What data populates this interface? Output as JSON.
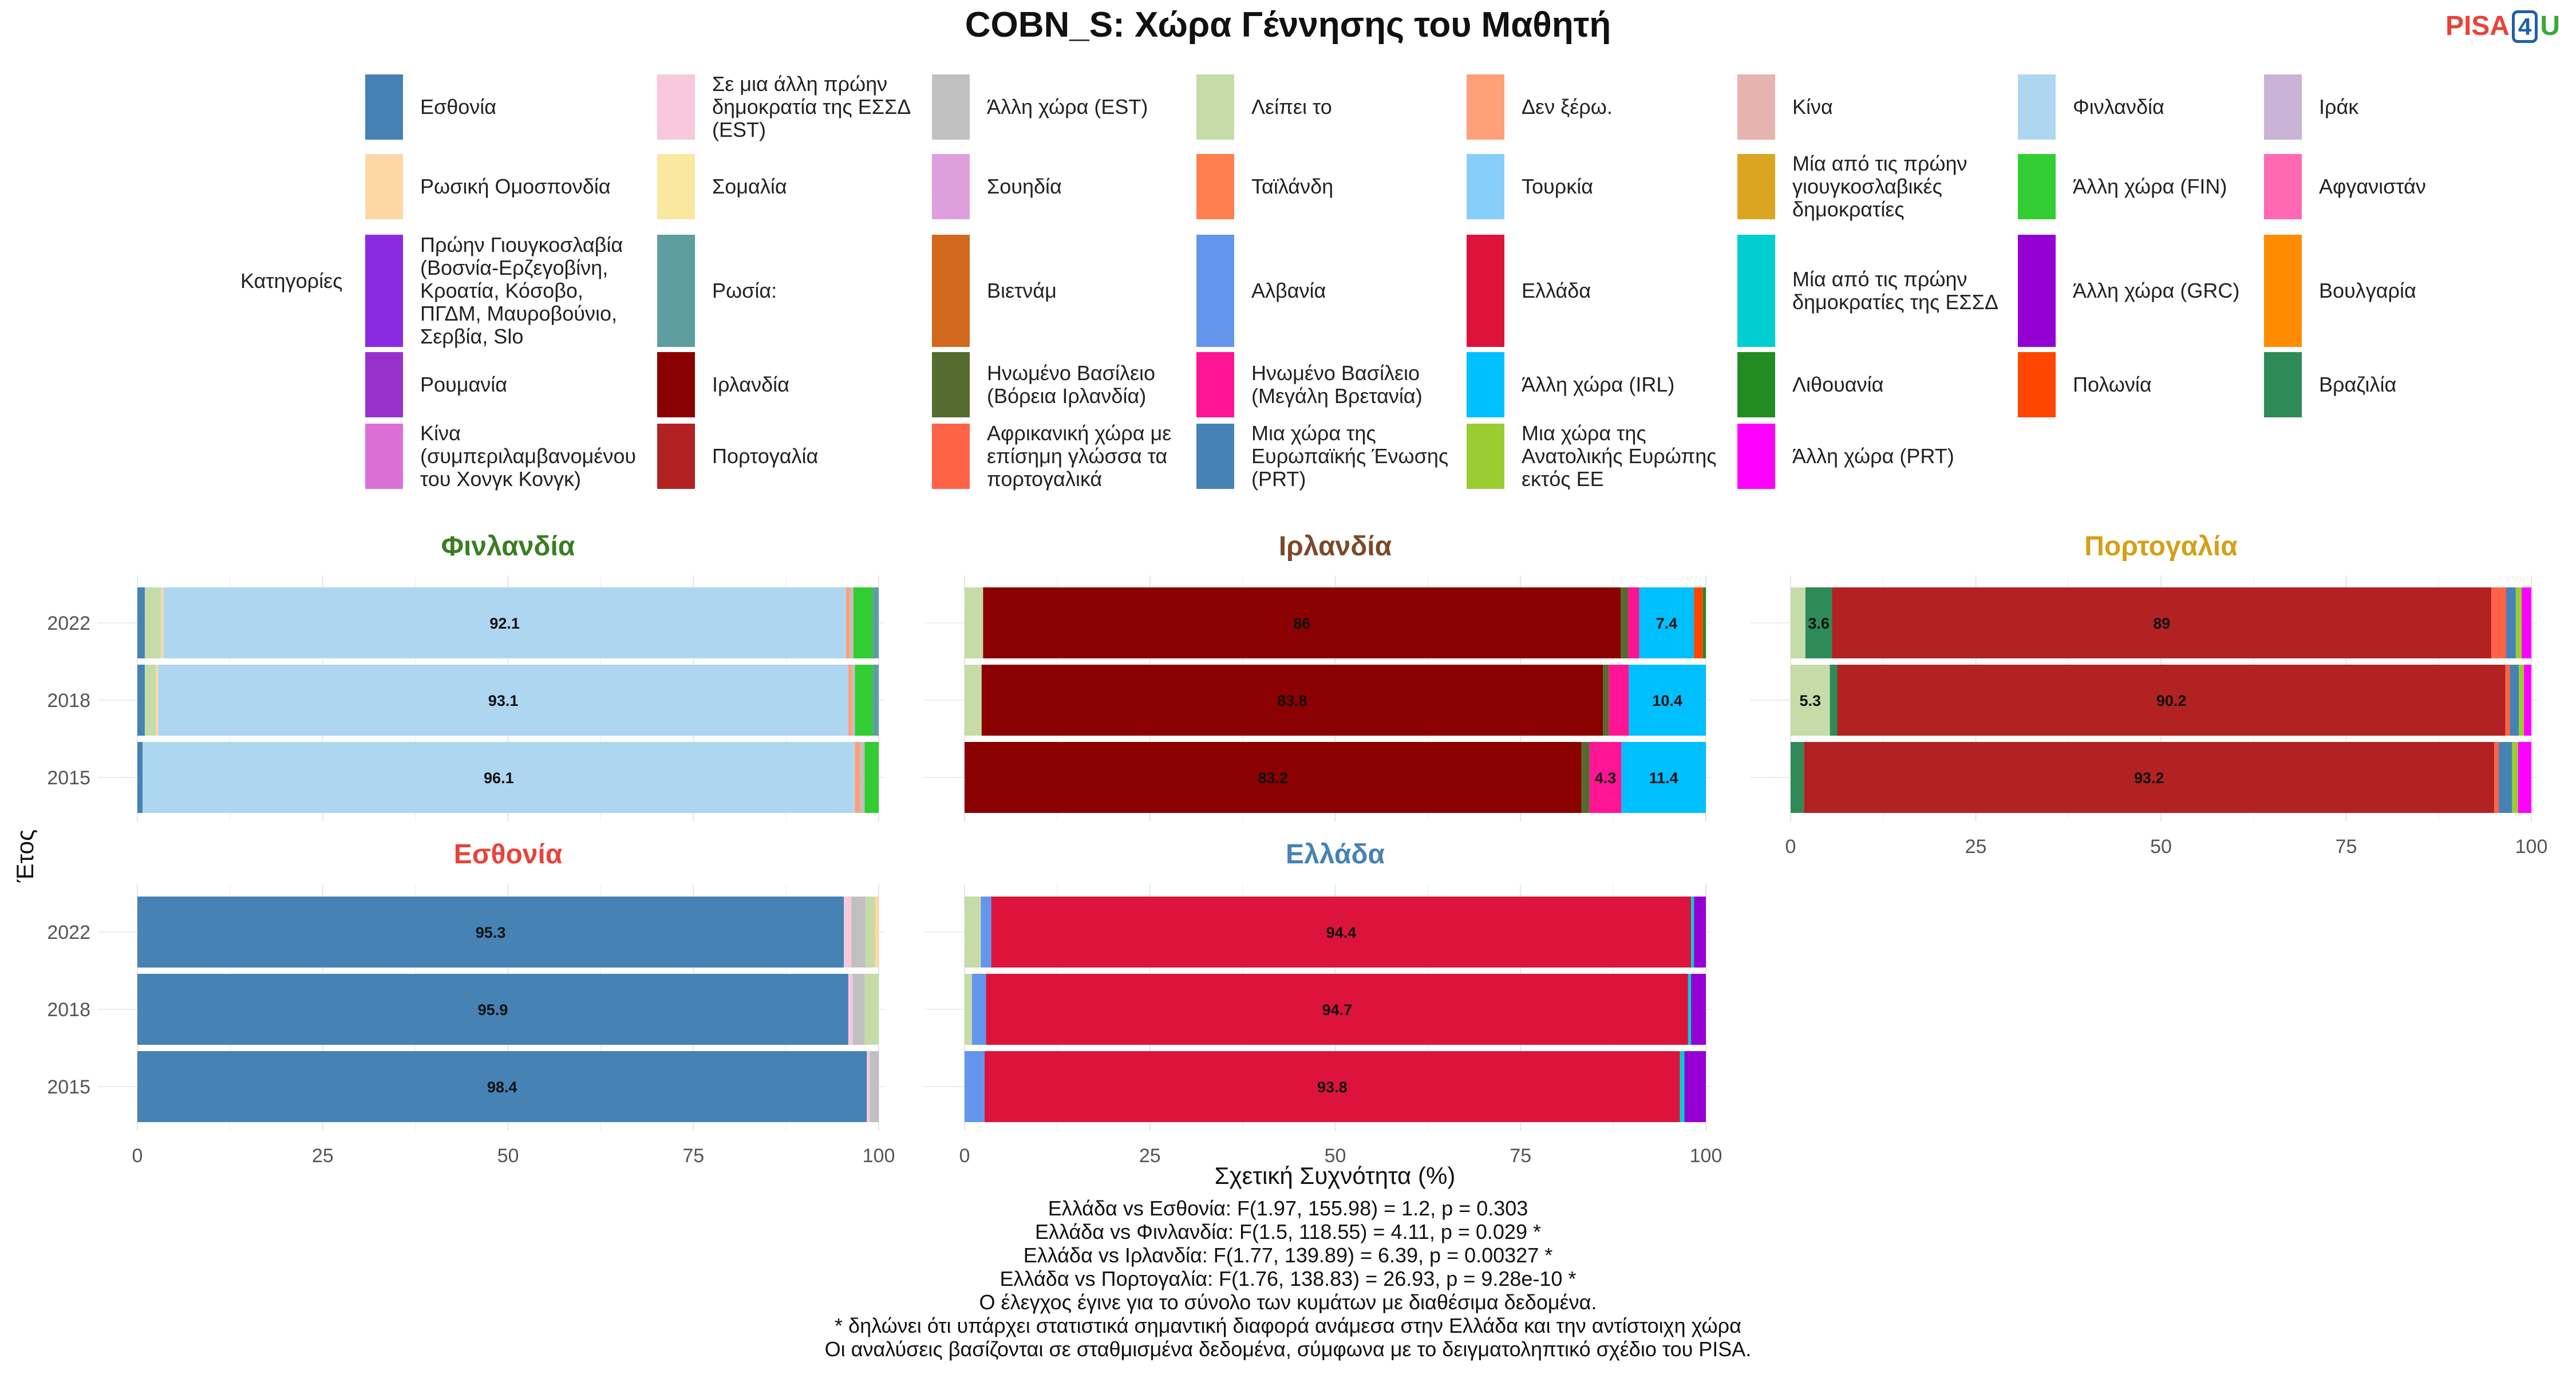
{
  "title": "COBN_S: Χώρα Γέννησης του Μαθητή",
  "logo": {
    "p": "PISA",
    "four": "4",
    "u": "U"
  },
  "legend": {
    "title": "Κατηγορίες",
    "items": [
      {
        "label": "Εσθονία",
        "color": "#4682B4"
      },
      {
        "label": "Σε μια άλλη πρώην δημοκρατία της ΕΣΣΔ (EST)",
        "color": "#F8C8DC"
      },
      {
        "label": "Άλλη χώρα (EST)",
        "color": "#C0C0C0"
      },
      {
        "label": "Λείπει το",
        "color": "#C5DCA8"
      },
      {
        "label": "Δεν ξέρω.",
        "color": "#FFA07A"
      },
      {
        "label": "Κίνα",
        "color": "#E6B3AE"
      },
      {
        "label": "Φινλανδία",
        "color": "#AED6F1"
      },
      {
        "label": "Ιράκ",
        "color": "#C9B3D6"
      },
      {
        "label": "Ρωσική Ομοσπονδία",
        "color": "#FDD8A5"
      },
      {
        "label": "Σομαλία",
        "color": "#FAE7A0"
      },
      {
        "label": "Σουηδία",
        "color": "#DDA0DD"
      },
      {
        "label": "Ταϊλάνδη",
        "color": "#FF7F50"
      },
      {
        "label": "Τουρκία",
        "color": "#87CEFA"
      },
      {
        "label": "Μία από τις πρώην γιουγκοσλαβικές δημοκρατίες",
        "color": "#DAA520"
      },
      {
        "label": "Άλλη χώρα (FIN)",
        "color": "#32CD32"
      },
      {
        "label": "Αφγανιστάν",
        "color": "#FF69B4"
      },
      {
        "label": "Πρώην Γιουγκοσλαβία (Βοσνία-Ερζεγοβίνη, Κροατία, Κόσοβο, ΠΓΔΜ, Μαυροβούνιο, Σερβία, Slo",
        "color": "#8A2BE2"
      },
      {
        "label": "Ρωσία:",
        "color": "#5F9EA0"
      },
      {
        "label": "Βιετνάμ",
        "color": "#D2691E"
      },
      {
        "label": "Αλβανία",
        "color": "#6495ED"
      },
      {
        "label": "Ελλάδα",
        "color": "#DC143C"
      },
      {
        "label": "Μία από τις πρώην δημοκρατίες της ΕΣΣΔ",
        "color": "#00CED1"
      },
      {
        "label": "Άλλη χώρα (GRC)",
        "color": "#9400D3"
      },
      {
        "label": "Βουλγαρία",
        "color": "#FF8C00"
      },
      {
        "label": "Ρουμανία",
        "color": "#9932CC"
      },
      {
        "label": "Ιρλανδία",
        "color": "#8B0000"
      },
      {
        "label": "Ηνωμένο Βασίλειο (Βόρεια Ιρλανδία)",
        "color": "#556B2F"
      },
      {
        "label": "Ηνωμένο Βασίλειο (Μεγάλη Βρετανία)",
        "color": "#FF1493"
      },
      {
        "label": "Άλλη χώρα (IRL)",
        "color": "#00BFFF"
      },
      {
        "label": "Λιθουανία",
        "color": "#228B22"
      },
      {
        "label": "Πολωνία",
        "color": "#FF4500"
      },
      {
        "label": "Βραζιλία",
        "color": "#2E8B57"
      },
      {
        "label": "Κίνα (συμπεριλαμβανομένου του Χονγκ Κονγκ)",
        "color": "#DA70D6"
      },
      {
        "label": "Πορτογαλία",
        "color": "#B22222"
      },
      {
        "label": "Αφρικανική χώρα με επίσημη γλώσσα τα πορτογαλικά",
        "color": "#FF6347"
      },
      {
        "label": "Μια χώρα της Ευρωπαϊκής Ένωσης (PRT)",
        "color": "#4682B4"
      },
      {
        "label": "Μια χώρα της Ανατολικής Ευρώπης εκτός ΕΕ",
        "color": "#9ACD32"
      },
      {
        "label": "Άλλη χώρα (PRT)",
        "color": "#FF00FF"
      }
    ]
  },
  "axis": {
    "xlabel": "Σχετική Συχνότητα (%)",
    "ylabel": "Έτος",
    "ticks": [
      "0",
      "25",
      "50",
      "75",
      "100"
    ]
  },
  "chart_data": [
    {
      "type": "bar",
      "stacked": true,
      "orientation": "horizontal",
      "title": "Φινλανδία",
      "title_color": "#3A7D22",
      "categories": [
        "2022",
        "2018",
        "2015"
      ],
      "xlim": [
        0,
        100
      ],
      "rows": [
        [
          {
            "c": "#4682B4",
            "v": 1.0
          },
          {
            "c": "#C5DCA8",
            "v": 2.2
          },
          {
            "c": "#FDD8A5",
            "v": 0.3
          },
          {
            "c": "#AED6F1",
            "v": 92.1,
            "label": "92.1"
          },
          {
            "c": "#FFA07A",
            "v": 0.5
          },
          {
            "c": "#C0C0C0",
            "v": 0.5
          },
          {
            "c": "#32CD32",
            "v": 2.6
          },
          {
            "c": "#5F9EA0",
            "v": 0.8
          }
        ],
        [
          {
            "c": "#4682B4",
            "v": 1.0
          },
          {
            "c": "#C5DCA8",
            "v": 1.5
          },
          {
            "c": "#FDD8A5",
            "v": 0.3
          },
          {
            "c": "#AED6F1",
            "v": 93.1,
            "label": "93.1"
          },
          {
            "c": "#FFA07A",
            "v": 0.5
          },
          {
            "c": "#C0C0C0",
            "v": 0.4
          },
          {
            "c": "#32CD32",
            "v": 2.4
          },
          {
            "c": "#5F9EA0",
            "v": 0.8
          }
        ],
        [
          {
            "c": "#4682B4",
            "v": 0.7
          },
          {
            "c": "#AED6F1",
            "v": 96.1,
            "label": "96.1"
          },
          {
            "c": "#FFA07A",
            "v": 0.7
          },
          {
            "c": "#C0C0C0",
            "v": 0.6
          },
          {
            "c": "#32CD32",
            "v": 1.9
          }
        ]
      ]
    },
    {
      "type": "bar",
      "stacked": true,
      "orientation": "horizontal",
      "title": "Ιρλανδία",
      "title_color": "#7B4A2A",
      "categories": [
        "2022",
        "2018",
        "2015"
      ],
      "xlim": [
        0,
        100
      ],
      "rows": [
        [
          {
            "c": "#C5DCA8",
            "v": 2.5
          },
          {
            "c": "#8B0000",
            "v": 86.0,
            "label": "86"
          },
          {
            "c": "#556B2F",
            "v": 1.0
          },
          {
            "c": "#FF1493",
            "v": 1.5
          },
          {
            "c": "#00BFFF",
            "v": 7.4,
            "label": "7.4"
          },
          {
            "c": "#FF4500",
            "v": 1.2
          },
          {
            "c": "#228B22",
            "v": 0.4
          }
        ],
        [
          {
            "c": "#C5DCA8",
            "v": 2.3
          },
          {
            "c": "#8B0000",
            "v": 83.8,
            "label": "83.8"
          },
          {
            "c": "#556B2F",
            "v": 0.8
          },
          {
            "c": "#FF1493",
            "v": 2.7
          },
          {
            "c": "#00BFFF",
            "v": 10.4,
            "label": "10.4"
          }
        ],
        [
          {
            "c": "#8B0000",
            "v": 83.2,
            "label": "83.2"
          },
          {
            "c": "#556B2F",
            "v": 1.1
          },
          {
            "c": "#FF1493",
            "v": 4.3,
            "label": "4.3"
          },
          {
            "c": "#00BFFF",
            "v": 11.4,
            "label": "11.4"
          }
        ]
      ]
    },
    {
      "type": "bar",
      "stacked": true,
      "orientation": "horizontal",
      "title": "Πορτογαλία",
      "title_color": "#D4A017",
      "categories": [
        "2022",
        "2018",
        "2015"
      ],
      "xlim": [
        0,
        100
      ],
      "rows": [
        [
          {
            "c": "#C5DCA8",
            "v": 2.0
          },
          {
            "c": "#2E8B57",
            "v": 3.6,
            "label": "3.6"
          },
          {
            "c": "#B22222",
            "v": 89.0,
            "label": "89"
          },
          {
            "c": "#FF6347",
            "v": 2.0
          },
          {
            "c": "#4682B4",
            "v": 1.3
          },
          {
            "c": "#9ACD32",
            "v": 0.8
          },
          {
            "c": "#FF00FF",
            "v": 1.3
          }
        ],
        [
          {
            "c": "#C5DCA8",
            "v": 5.3,
            "label": "5.3"
          },
          {
            "c": "#2E8B57",
            "v": 1.0
          },
          {
            "c": "#B22222",
            "v": 90.2,
            "label": "90.2"
          },
          {
            "c": "#FF6347",
            "v": 0.6
          },
          {
            "c": "#4682B4",
            "v": 1.2
          },
          {
            "c": "#9ACD32",
            "v": 0.7
          },
          {
            "c": "#FF00FF",
            "v": 1.0
          }
        ],
        [
          {
            "c": "#2E8B57",
            "v": 1.8
          },
          {
            "c": "#B22222",
            "v": 93.2,
            "label": "93.2"
          },
          {
            "c": "#FF6347",
            "v": 0.6
          },
          {
            "c": "#4682B4",
            "v": 1.8
          },
          {
            "c": "#9ACD32",
            "v": 0.8
          },
          {
            "c": "#FF00FF",
            "v": 1.8
          }
        ]
      ]
    },
    {
      "type": "bar",
      "stacked": true,
      "orientation": "horizontal",
      "title": "Εσθονία",
      "title_color": "#E8433A",
      "categories": [
        "2022",
        "2018",
        "2015"
      ],
      "xlim": [
        0,
        100
      ],
      "rows": [
        [
          {
            "c": "#4682B4",
            "v": 95.3,
            "label": "95.3"
          },
          {
            "c": "#F8C8DC",
            "v": 1.0
          },
          {
            "c": "#C0C0C0",
            "v": 1.9
          },
          {
            "c": "#C5DCA8",
            "v": 1.3
          },
          {
            "c": "#FDD8A5",
            "v": 0.5
          }
        ],
        [
          {
            "c": "#4682B4",
            "v": 95.9,
            "label": "95.9"
          },
          {
            "c": "#F8C8DC",
            "v": 0.6
          },
          {
            "c": "#C0C0C0",
            "v": 1.6
          },
          {
            "c": "#C5DCA8",
            "v": 1.9
          }
        ],
        [
          {
            "c": "#4682B4",
            "v": 98.4,
            "label": "98.4"
          },
          {
            "c": "#F8C8DC",
            "v": 0.4
          },
          {
            "c": "#C0C0C0",
            "v": 1.2
          }
        ]
      ]
    },
    {
      "type": "bar",
      "stacked": true,
      "orientation": "horizontal",
      "title": "Ελλάδα",
      "title_color": "#4682B4",
      "categories": [
        "2022",
        "2018",
        "2015"
      ],
      "xlim": [
        0,
        100
      ],
      "rows": [
        [
          {
            "c": "#C5DCA8",
            "v": 2.2
          },
          {
            "c": "#6495ED",
            "v": 1.4
          },
          {
            "c": "#DC143C",
            "v": 94.4,
            "label": "94.4"
          },
          {
            "c": "#00CED1",
            "v": 0.4
          },
          {
            "c": "#9400D3",
            "v": 1.6
          }
        ],
        [
          {
            "c": "#C5DCA8",
            "v": 1.0
          },
          {
            "c": "#6495ED",
            "v": 1.9
          },
          {
            "c": "#DC143C",
            "v": 94.7,
            "label": "94.7"
          },
          {
            "c": "#00CED1",
            "v": 0.4
          },
          {
            "c": "#9400D3",
            "v": 2.0
          }
        ],
        [
          {
            "c": "#6495ED",
            "v": 2.7
          },
          {
            "c": "#DC143C",
            "v": 93.8,
            "label": "93.8"
          },
          {
            "c": "#00CED1",
            "v": 0.6
          },
          {
            "c": "#9400D3",
            "v": 2.9
          }
        ]
      ]
    }
  ],
  "footnotes": [
    "Ελλάδα vs Εσθονία: F(1.97, 155.98) = 1.2, p = 0.303",
    "Ελλάδα vs Φινλανδία: F(1.5, 118.55) = 4.11, p = 0.029 *",
    "Ελλάδα vs Ιρλανδία: F(1.77, 139.89) = 6.39, p = 0.00327 *",
    "Ελλάδα vs Πορτογαλία: F(1.76, 138.83) = 26.93, p = 9.28e-10 *",
    "Ο έλεγχος έγινε για το σύνολο των κυμάτων με διαθέσιμα δεδομένα.",
    "* δηλώνει ότι υπάρχει στατιστικά σημαντική διαφορά ανάμεσα στην Ελλάδα και την αντίστοιχη χώρα",
    "Οι αναλύσεις βασίζονται σε σταθμισμένα δεδομένα, σύμφωνα με το δειγματοληπτικό σχέδιο του PISA."
  ]
}
